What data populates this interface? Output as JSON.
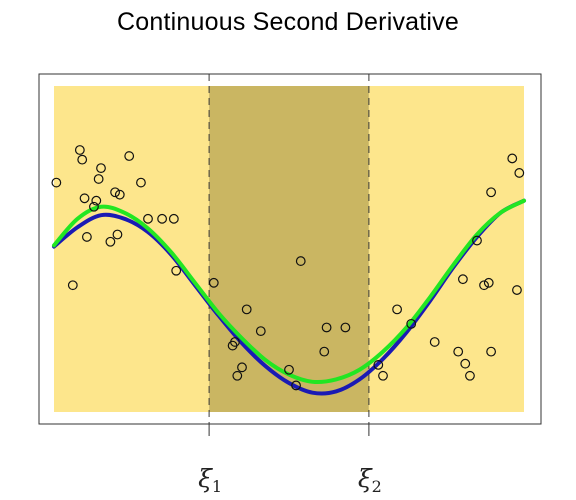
{
  "chart_data": {
    "type": "scatter",
    "title": "Continuous Second Derivative",
    "xlabel": "",
    "ylabel": "",
    "xlim": [
      0,
      1
    ],
    "ylim": [
      -1.35,
      1.35
    ],
    "grid": false,
    "knots": [
      {
        "x": 0.33,
        "label": "ξ",
        "subscript": "1"
      },
      {
        "x": 0.67,
        "label": "ξ",
        "subscript": "2"
      }
    ],
    "regions": [
      {
        "x_start": 0.0,
        "x_end": 0.33,
        "color": "#fde68c"
      },
      {
        "x_start": 0.33,
        "x_end": 0.67,
        "color": "#cab662"
      },
      {
        "x_start": 0.67,
        "x_end": 1.0,
        "color": "#fde68c"
      }
    ],
    "points": [
      [
        0.005,
        0.55
      ],
      [
        0.04,
        -0.3
      ],
      [
        0.055,
        0.82
      ],
      [
        0.06,
        0.74
      ],
      [
        0.065,
        0.42
      ],
      [
        0.07,
        0.1
      ],
      [
        0.085,
        0.35
      ],
      [
        0.09,
        0.4
      ],
      [
        0.095,
        0.58
      ],
      [
        0.1,
        0.67
      ],
      [
        0.12,
        0.06
      ],
      [
        0.13,
        0.47
      ],
      [
        0.135,
        0.12
      ],
      [
        0.14,
        0.45
      ],
      [
        0.16,
        0.77
      ],
      [
        0.185,
        0.55
      ],
      [
        0.2,
        0.25
      ],
      [
        0.23,
        0.25
      ],
      [
        0.255,
        0.25
      ],
      [
        0.26,
        -0.18
      ],
      [
        0.34,
        -0.28
      ],
      [
        0.38,
        -0.8
      ],
      [
        0.385,
        -0.77
      ],
      [
        0.39,
        -1.05
      ],
      [
        0.4,
        -0.98
      ],
      [
        0.41,
        -0.5
      ],
      [
        0.44,
        -0.68
      ],
      [
        0.5,
        -1.0
      ],
      [
        0.515,
        -1.13
      ],
      [
        0.525,
        -0.1
      ],
      [
        0.575,
        -0.85
      ],
      [
        0.58,
        -0.65
      ],
      [
        0.62,
        -0.65
      ],
      [
        0.69,
        -0.96
      ],
      [
        0.7,
        -1.05
      ],
      [
        0.73,
        -0.5
      ],
      [
        0.76,
        -0.62
      ],
      [
        0.81,
        -0.77
      ],
      [
        0.86,
        -0.85
      ],
      [
        0.87,
        -0.25
      ],
      [
        0.875,
        -0.95
      ],
      [
        0.885,
        -1.05
      ],
      [
        0.9,
        0.07
      ],
      [
        0.915,
        -0.3
      ],
      [
        0.925,
        -0.28
      ],
      [
        0.93,
        -0.85
      ],
      [
        0.93,
        0.47
      ],
      [
        0.975,
        0.75
      ],
      [
        0.985,
        -0.34
      ],
      [
        0.99,
        0.63
      ]
    ],
    "series": [
      {
        "type": "line",
        "color": "#1a1ab4",
        "x": [
          0.0,
          0.05,
          0.1,
          0.15,
          0.2,
          0.25,
          0.3,
          0.35,
          0.4,
          0.45,
          0.5,
          0.55,
          0.6,
          0.65,
          0.7,
          0.75,
          0.8,
          0.85,
          0.9,
          0.95,
          1.0
        ],
        "y": [
          0.02,
          0.18,
          0.28,
          0.25,
          0.14,
          -0.05,
          -0.3,
          -0.55,
          -0.78,
          -0.97,
          -1.11,
          -1.19,
          -1.18,
          -1.08,
          -0.91,
          -0.69,
          -0.43,
          -0.15,
          0.1,
          0.3,
          0.4
        ]
      },
      {
        "type": "line",
        "color": "#22e622",
        "x": [
          0.0,
          0.05,
          0.1,
          0.15,
          0.2,
          0.25,
          0.3,
          0.35,
          0.4,
          0.45,
          0.5,
          0.55,
          0.6,
          0.65,
          0.7,
          0.75,
          0.8,
          0.85,
          0.9,
          0.95,
          1.0
        ],
        "y": [
          0.03,
          0.25,
          0.35,
          0.3,
          0.17,
          -0.03,
          -0.28,
          -0.53,
          -0.74,
          -0.92,
          -1.04,
          -1.1,
          -1.08,
          -1.0,
          -0.85,
          -0.65,
          -0.4,
          -0.13,
          0.12,
          0.3,
          0.4
        ]
      }
    ]
  }
}
